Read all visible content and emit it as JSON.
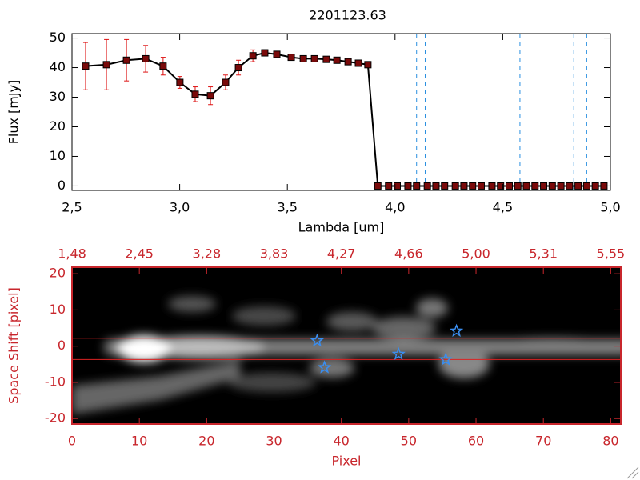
{
  "chart_data": [
    {
      "type": "line",
      "title": "2201123.63",
      "x_label": "Lambda [um]",
      "y_label": "Flux [mJy]",
      "x": [
        2.563,
        2.66,
        2.753,
        2.842,
        2.923,
        3.001,
        3.072,
        3.143,
        3.213,
        3.273,
        3.34,
        3.395,
        3.451,
        3.518,
        3.574,
        3.626,
        3.681,
        3.73,
        3.782,
        3.83,
        3.874,
        3.92,
        3.97,
        4.01,
        4.06,
        4.1,
        4.15,
        4.19,
        4.23,
        4.28,
        4.32,
        4.36,
        4.4,
        4.45,
        4.49,
        4.53,
        4.57,
        4.61,
        4.65,
        4.69,
        4.73,
        4.77,
        4.81,
        4.85,
        4.89,
        4.93,
        4.97
      ],
      "values": [
        40.5,
        41,
        42.5,
        43,
        40.5,
        35,
        31,
        30.5,
        35,
        40,
        44,
        45,
        44.5,
        43.5,
        43,
        43,
        42.8,
        42.5,
        42,
        41.5,
        41,
        0,
        0,
        0,
        0,
        0,
        0,
        0,
        0,
        0,
        0,
        0,
        0,
        0,
        0,
        0,
        0,
        0,
        0,
        0,
        0,
        0,
        0,
        0,
        0,
        0,
        0
      ],
      "errors": [
        8,
        8.5,
        7,
        4.5,
        3,
        2,
        2.5,
        3,
        2.5,
        2.5,
        2,
        1,
        0.5,
        0.5,
        0.5,
        0.5,
        0.5,
        0.5,
        0.5,
        0.5,
        0.5,
        0.3,
        0.3,
        0.3,
        0.3,
        0.3,
        0.3,
        0.3,
        0.3,
        0.3,
        0.3,
        0.3,
        0.3,
        0.3,
        0.3,
        0.3,
        0.3,
        0.3,
        0.3,
        0.3,
        0.3,
        0.3,
        0.3,
        0.3,
        0.3,
        0.3,
        0.3
      ],
      "color": "#000000",
      "marker_color": "#7a0a0a",
      "error_color": "#dd1111",
      "vlines": [
        4.1,
        4.14,
        4.58,
        4.83,
        4.89
      ],
      "vline_color": "#2a8fe0",
      "axis_color": "#000000",
      "xlim": [
        2.5,
        5.0
      ],
      "ylim": [
        -1.5,
        51.5
      ],
      "xticks": [
        {
          "value": 2.5,
          "label": "2,5"
        },
        {
          "value": 3,
          "label": "3,0"
        },
        {
          "value": 3.5,
          "label": "3,5"
        },
        {
          "value": 4,
          "label": "4,0"
        },
        {
          "value": 4.5,
          "label": "4,5"
        },
        {
          "value": 5,
          "label": "5,0"
        }
      ],
      "yticks": [
        0,
        10,
        20,
        30,
        40,
        50
      ]
    },
    {
      "type": "image",
      "x_label": "Pixel",
      "y_label": "Space Shift [pixel]",
      "axis_color": "#c8262c",
      "xlim": [
        0,
        81.5
      ],
      "ylim": [
        -21.5,
        21.8
      ],
      "xticks": [
        0,
        10,
        20,
        30,
        40,
        50,
        60,
        70,
        80
      ],
      "x2ticks": [
        {
          "value": 0,
          "label": "1,48"
        },
        {
          "value": 10,
          "label": "2,45"
        },
        {
          "value": 20,
          "label": "3,28"
        },
        {
          "value": 30,
          "label": "3,83"
        },
        {
          "value": 40,
          "label": "4,27"
        },
        {
          "value": 50,
          "label": "4,66"
        },
        {
          "value": 60,
          "label": "5,00"
        },
        {
          "value": 70,
          "label": "5,31"
        },
        {
          "value": 80,
          "label": "5,55"
        }
      ],
      "yticks": [
        -20,
        -10,
        0,
        10,
        20
      ],
      "hlines": [
        2.2,
        -3.7
      ],
      "hline_color": "#dd2222",
      "stars_x": [
        36.4,
        37.5,
        48.5,
        55.5,
        57.1
      ],
      "stars_y": [
        1.5,
        -5.9,
        -2.2,
        -3.7,
        4.2
      ],
      "star_color": "#3a8ef0"
    }
  ]
}
